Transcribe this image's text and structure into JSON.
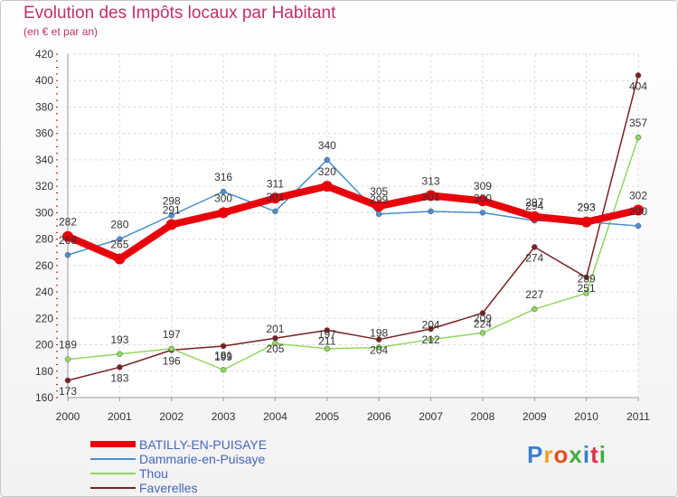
{
  "header": {
    "title": "Evolution des Impôts locaux par Habitant",
    "subtitle": "(en € et par an)"
  },
  "logo": {
    "text": "Proxiti",
    "colors": [
      "#3a7fd0",
      "#f0a020",
      "#e05020",
      "#40b040",
      "#3a7fd0",
      "#e03050",
      "#40b040"
    ]
  },
  "chart_data": {
    "type": "line",
    "x": [
      2000,
      2001,
      2002,
      2003,
      2004,
      2005,
      2006,
      2007,
      2008,
      2009,
      2010,
      2011
    ],
    "ylim": [
      160,
      420
    ],
    "yticks": [
      160,
      180,
      200,
      220,
      240,
      260,
      280,
      300,
      320,
      340,
      360,
      380,
      400,
      420
    ],
    "grid": true,
    "legend_position": "bottom-left",
    "series": [
      {
        "name": "BATILLY-EN-PUISAYE",
        "color": "#e8000b",
        "values": [
          282,
          265,
          291,
          300,
          311,
          320,
          305,
          313,
          309,
          297,
          293,
          302
        ]
      },
      {
        "name": "Dammarie-en-Puisaye",
        "color": "#4a8fd0",
        "values": [
          268,
          280,
          298,
          316,
          301,
          340,
          299,
          301,
          300,
          294,
          293,
          290
        ]
      },
      {
        "name": "Thou",
        "color": "#8fd860",
        "values": [
          189,
          193,
          197,
          181,
          201,
          197,
          198,
          204,
          209,
          227,
          239,
          357
        ]
      },
      {
        "name": "Faverelles",
        "color": "#7a2020",
        "values": [
          173,
          183,
          196,
          199,
          205,
          211,
          204,
          212,
          224,
          274,
          251,
          404
        ]
      }
    ]
  }
}
